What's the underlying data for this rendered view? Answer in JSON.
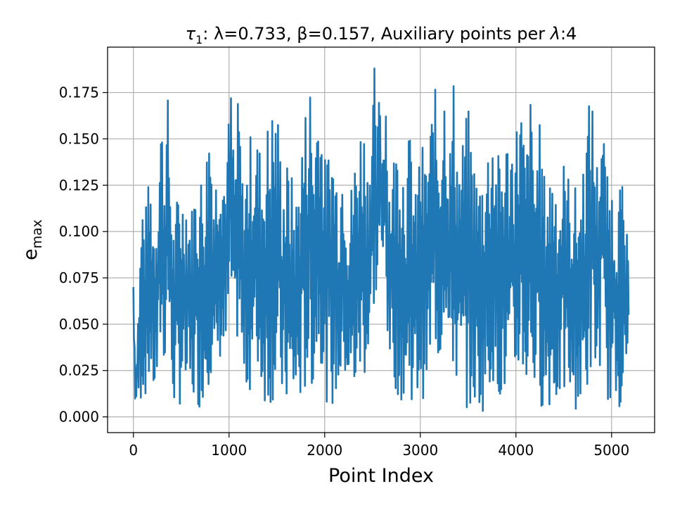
{
  "chart_data": {
    "type": "line",
    "title": "τ₁: λ=0.733, β=0.157, Auxiliary points per λ:4",
    "title_parts": {
      "tau": "τ",
      "tau_sub": "1",
      "lambda_label": ": λ=0.733, ",
      "beta_label": "β=0.157, Auxiliary points per ",
      "lambda_sym": "λ",
      "tail": ":4"
    },
    "xlabel": "Point Index",
    "ylabel": "e",
    "ylabel_sub": "max",
    "xlim": [
      -270,
      5450
    ],
    "ylim": [
      -0.0085,
      0.1995
    ],
    "xticks": [
      0,
      1000,
      2000,
      3000,
      4000,
      5000
    ],
    "xtick_labels": [
      "0",
      "1000",
      "2000",
      "3000",
      "4000",
      "5000"
    ],
    "yticks": [
      0.0,
      0.025,
      0.05,
      0.075,
      0.1,
      0.125,
      0.15,
      0.175
    ],
    "ytick_labels": [
      "0.000",
      "0.025",
      "0.050",
      "0.075",
      "0.100",
      "0.125",
      "0.150",
      "0.175"
    ],
    "grid": true,
    "series": [
      {
        "color": "#1f77b4",
        "x_start": 0,
        "x_end": 5180,
        "envelope": {
          "x": [
            0,
            20,
            40,
            70,
            90,
            120,
            150,
            180,
            220,
            260,
            290,
            320,
            360,
            400,
            430,
            470,
            510,
            560,
            600,
            640,
            700,
            740,
            800,
            850,
            900,
            960,
            1020,
            1060,
            1100,
            1150,
            1200,
            1250,
            1300,
            1350,
            1400,
            1440,
            1500,
            1560,
            1620,
            1700,
            1760,
            1850,
            1880,
            1940,
            2000,
            2080,
            2150,
            2200,
            2250,
            2300,
            2400,
            2450,
            2520,
            2540,
            2580,
            2600,
            2640,
            2660,
            2700,
            2780,
            2850,
            2900,
            2950,
            3000,
            3050,
            3100,
            3150,
            3200,
            3260,
            3300,
            3350,
            3400,
            3500,
            3600,
            3700,
            3760,
            3800,
            3900,
            4000,
            4050,
            4100,
            4150,
            4200,
            4250,
            4300,
            4400,
            4450,
            4500,
            4600,
            4680,
            4750,
            4800,
            4850,
            4900,
            4950,
            5000,
            5050,
            5100,
            5150,
            5180
          ],
          "hi": [
            0.076,
            0.03,
            0.05,
            0.09,
            0.126,
            0.11,
            0.125,
            0.131,
            0.11,
            0.14,
            0.173,
            0.14,
            0.173,
            0.12,
            0.1,
            0.13,
            0.125,
            0.13,
            0.11,
            0.13,
            0.135,
            0.13,
            0.173,
            0.13,
            0.16,
            0.14,
            0.178,
            0.14,
            0.178,
            0.12,
            0.152,
            0.155,
            0.154,
            0.14,
            0.16,
            0.17,
            0.173,
            0.135,
            0.14,
            0.12,
            0.155,
            0.187,
            0.15,
            0.187,
            0.14,
            0.156,
            0.13,
            0.156,
            0.11,
            0.14,
            0.17,
            0.14,
            0.19,
            0.14,
            0.19,
            0.15,
            0.19,
            0.13,
            0.14,
            0.16,
            0.14,
            0.16,
            0.12,
            0.156,
            0.14,
            0.16,
            0.18,
            0.156,
            0.187,
            0.14,
            0.187,
            0.14,
            0.168,
            0.13,
            0.15,
            0.168,
            0.14,
            0.155,
            0.16,
            0.178,
            0.14,
            0.175,
            0.14,
            0.16,
            0.13,
            0.143,
            0.125,
            0.14,
            0.125,
            0.126,
            0.17,
            0.173,
            0.14,
            0.173,
            0.13,
            0.13,
            0.124,
            0.13,
            0.11,
            0.076
          ],
          "lo": [
            0.05,
            0.002,
            0.003,
            0.005,
            0.01,
            0.01,
            0.012,
            0.02,
            0.005,
            0.01,
            0.04,
            0.02,
            0.06,
            0.01,
            0.004,
            0.003,
            0.01,
            0.004,
            0.003,
            0.006,
            0.004,
            0.01,
            0.02,
            0.004,
            0.03,
            0.02,
            0.06,
            0.02,
            0.05,
            0.01,
            0.01,
            0.02,
            0.02,
            0.01,
            0.004,
            0.006,
            0.01,
            0.005,
            0.002,
            0.002,
            0.005,
            0.02,
            0.01,
            0.04,
            0.01,
            0.003,
            0.01,
            0.02,
            0.01,
            0.005,
            0.02,
            0.02,
            0.06,
            0.06,
            0.09,
            0.06,
            0.09,
            0.03,
            0.02,
            0.01,
            0.003,
            0.01,
            0.003,
            0.01,
            0.01,
            0.02,
            0.04,
            0.02,
            0.06,
            0.02,
            0.02,
            0.01,
            0.004,
            0.002,
            0.004,
            0.02,
            0.01,
            0.005,
            0.01,
            0.03,
            0.01,
            0.02,
            0.01,
            0.005,
            0.005,
            0.003,
            0.005,
            0.01,
            0.005,
            0.002,
            0.01,
            0.03,
            0.01,
            0.04,
            0.01,
            0.005,
            0.002,
            0.006,
            0.002,
            0.05
          ]
        }
      }
    ]
  }
}
